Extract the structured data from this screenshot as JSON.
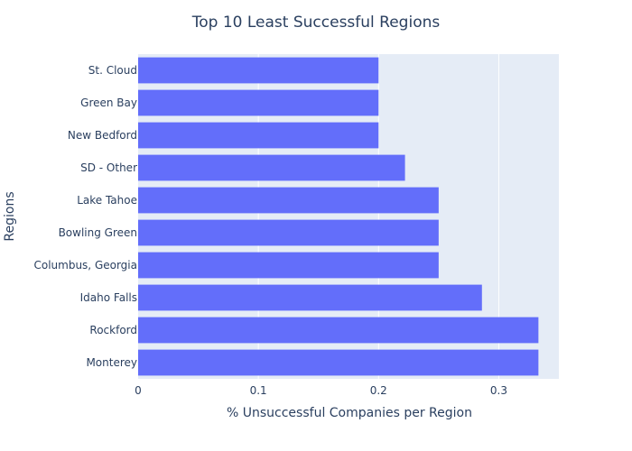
{
  "chart_data": {
    "type": "bar",
    "orientation": "horizontal",
    "title": "Top 10 Least Successful Regions",
    "xlabel": "% Unsuccessful Companies per Region",
    "ylabel": "Regions",
    "categories": [
      "St. Cloud",
      "Green Bay",
      "New Bedford",
      "SD - Other",
      "Lake Tahoe",
      "Bowling Green",
      "Columbus, Georgia",
      "Idaho Falls",
      "Rockford",
      "Monterey"
    ],
    "values": [
      0.2,
      0.2,
      0.2,
      0.222,
      0.25,
      0.25,
      0.25,
      0.286,
      0.333,
      0.333
    ],
    "xlim": [
      0,
      0.35
    ],
    "xticks": [
      0,
      0.1,
      0.2,
      0.3
    ],
    "xtick_labels": [
      "0",
      "0.1",
      "0.2",
      "0.3"
    ],
    "grid": true,
    "legend": "none",
    "colors": {
      "bar": "#636efa",
      "plot_bg": "#e5ecf6",
      "grid": "#ffffff",
      "text": "#2a3f5f"
    }
  }
}
